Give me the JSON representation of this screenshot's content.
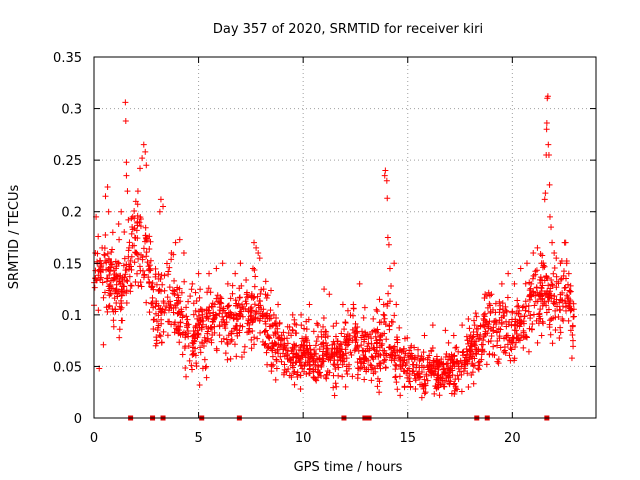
{
  "chart_data": {
    "type": "scatter",
    "title": "Day 357 of 2020, SRMTID for receiver kiri",
    "xlabel": "GPS time / hours",
    "ylabel": "SRMTID / TECUs",
    "xlim": [
      0,
      24
    ],
    "ylim": [
      0,
      0.35
    ],
    "xticks": [
      0,
      5,
      10,
      15,
      20
    ],
    "xtick_labels": [
      "0",
      "5",
      "10",
      "15",
      "20"
    ],
    "yticks": [
      0,
      0.05,
      0.1,
      0.15,
      0.2,
      0.25,
      0.3,
      0.35
    ],
    "ytick_labels": [
      "0",
      "0.05",
      "0.1",
      "0.15",
      "0.2",
      "0.25",
      "0.3",
      "0.35"
    ],
    "grid": true,
    "marker": "+",
    "color": "#ff0000",
    "baseline_markers_x": [
      1.75,
      2.8,
      3.3,
      5.15,
      6.95,
      11.95,
      12.95,
      13.15,
      18.3,
      18.8,
      21.65
    ],
    "trend": [
      [
        0.0,
        0.13,
        0.035
      ],
      [
        0.5,
        0.145,
        0.035
      ],
      [
        1.0,
        0.125,
        0.035
      ],
      [
        1.5,
        0.13,
        0.04
      ],
      [
        2.0,
        0.17,
        0.04
      ],
      [
        2.5,
        0.15,
        0.04
      ],
      [
        3.0,
        0.1,
        0.03
      ],
      [
        3.5,
        0.12,
        0.04
      ],
      [
        4.0,
        0.105,
        0.035
      ],
      [
        4.5,
        0.085,
        0.03
      ],
      [
        5.0,
        0.08,
        0.03
      ],
      [
        5.5,
        0.095,
        0.03
      ],
      [
        6.0,
        0.1,
        0.03
      ],
      [
        6.5,
        0.09,
        0.03
      ],
      [
        7.0,
        0.1,
        0.03
      ],
      [
        7.5,
        0.1,
        0.03
      ],
      [
        8.0,
        0.105,
        0.035
      ],
      [
        8.5,
        0.08,
        0.03
      ],
      [
        9.0,
        0.065,
        0.025
      ],
      [
        9.5,
        0.06,
        0.025
      ],
      [
        10.0,
        0.065,
        0.025
      ],
      [
        10.5,
        0.06,
        0.025
      ],
      [
        11.0,
        0.065,
        0.025
      ],
      [
        11.5,
        0.06,
        0.025
      ],
      [
        12.0,
        0.07,
        0.025
      ],
      [
        12.5,
        0.075,
        0.03
      ],
      [
        13.0,
        0.065,
        0.025
      ],
      [
        13.5,
        0.07,
        0.03
      ],
      [
        14.0,
        0.08,
        0.035
      ],
      [
        14.5,
        0.065,
        0.03
      ],
      [
        15.0,
        0.05,
        0.02
      ],
      [
        15.5,
        0.045,
        0.02
      ],
      [
        16.0,
        0.045,
        0.02
      ],
      [
        16.5,
        0.045,
        0.02
      ],
      [
        17.0,
        0.05,
        0.02
      ],
      [
        17.5,
        0.05,
        0.02
      ],
      [
        18.0,
        0.065,
        0.025
      ],
      [
        18.5,
        0.08,
        0.03
      ],
      [
        19.0,
        0.085,
        0.03
      ],
      [
        19.5,
        0.09,
        0.03
      ],
      [
        20.0,
        0.08,
        0.03
      ],
      [
        20.5,
        0.095,
        0.03
      ],
      [
        21.0,
        0.11,
        0.035
      ],
      [
        21.5,
        0.13,
        0.035
      ],
      [
        22.0,
        0.11,
        0.03
      ],
      [
        22.5,
        0.125,
        0.03
      ],
      [
        22.9,
        0.1,
        0.03
      ]
    ],
    "spikes": [
      [
        0.1,
        0.195
      ],
      [
        0.2,
        0.176
      ],
      [
        0.3,
        0.142
      ],
      [
        0.25,
        0.048
      ],
      [
        0.45,
        0.071
      ],
      [
        0.55,
        0.215
      ],
      [
        0.65,
        0.224
      ],
      [
        0.7,
        0.2
      ],
      [
        0.9,
        0.18
      ],
      [
        1.2,
        0.173
      ],
      [
        1.3,
        0.2
      ],
      [
        1.5,
        0.306
      ],
      [
        1.52,
        0.288
      ],
      [
        1.55,
        0.248
      ],
      [
        1.55,
        0.235
      ],
      [
        1.6,
        0.22
      ],
      [
        1.85,
        0.195
      ],
      [
        2.0,
        0.21
      ],
      [
        2.1,
        0.22
      ],
      [
        2.2,
        0.242
      ],
      [
        2.3,
        0.252
      ],
      [
        2.38,
        0.265
      ],
      [
        2.45,
        0.258
      ],
      [
        2.5,
        0.245
      ],
      [
        2.95,
        0.07
      ],
      [
        3.15,
        0.2
      ],
      [
        3.2,
        0.212
      ],
      [
        3.3,
        0.205
      ],
      [
        3.7,
        0.16
      ],
      [
        3.9,
        0.17
      ],
      [
        4.1,
        0.173
      ],
      [
        4.3,
        0.16
      ],
      [
        4.4,
        0.04
      ],
      [
        4.7,
        0.13
      ],
      [
        5.0,
        0.14
      ],
      [
        5.05,
        0.032
      ],
      [
        5.5,
        0.14
      ],
      [
        5.85,
        0.145
      ],
      [
        6.15,
        0.15
      ],
      [
        6.4,
        0.13
      ],
      [
        6.75,
        0.14
      ],
      [
        7.0,
        0.15
      ],
      [
        7.3,
        0.12
      ],
      [
        7.6,
        0.145
      ],
      [
        7.65,
        0.17
      ],
      [
        7.75,
        0.165
      ],
      [
        7.85,
        0.16
      ],
      [
        8.2,
        0.12
      ],
      [
        8.6,
        0.1
      ],
      [
        8.8,
        0.11
      ],
      [
        9.5,
        0.1
      ],
      [
        9.9,
        0.1
      ],
      [
        10.3,
        0.11
      ],
      [
        10.7,
        0.09
      ],
      [
        11.0,
        0.125
      ],
      [
        11.25,
        0.12
      ],
      [
        11.9,
        0.11
      ],
      [
        12.4,
        0.11
      ],
      [
        12.7,
        0.13
      ],
      [
        12.85,
        0.08
      ],
      [
        12.95,
        0.107
      ],
      [
        13.5,
        0.105
      ],
      [
        13.65,
        0.115
      ],
      [
        13.85,
        0.11
      ],
      [
        13.9,
        0.235
      ],
      [
        13.93,
        0.24
      ],
      [
        14.0,
        0.23
      ],
      [
        14.02,
        0.213
      ],
      [
        14.05,
        0.175
      ],
      [
        14.1,
        0.168
      ],
      [
        14.15,
        0.145
      ],
      [
        14.2,
        0.128
      ],
      [
        14.35,
        0.15
      ],
      [
        14.45,
        0.11
      ],
      [
        15.8,
        0.08
      ],
      [
        16.2,
        0.09
      ],
      [
        16.8,
        0.085
      ],
      [
        17.2,
        0.08
      ],
      [
        17.6,
        0.09
      ],
      [
        17.9,
        0.03
      ],
      [
        18.2,
        0.09
      ],
      [
        18.7,
        0.12
      ],
      [
        19.0,
        0.12
      ],
      [
        19.5,
        0.13
      ],
      [
        19.8,
        0.14
      ],
      [
        20.1,
        0.13
      ],
      [
        20.4,
        0.145
      ],
      [
        20.7,
        0.15
      ],
      [
        20.9,
        0.13
      ],
      [
        21.0,
        0.16
      ],
      [
        21.2,
        0.165
      ],
      [
        21.4,
        0.15
      ],
      [
        21.55,
        0.212
      ],
      [
        21.58,
        0.218
      ],
      [
        21.62,
        0.255
      ],
      [
        21.64,
        0.28
      ],
      [
        21.65,
        0.286
      ],
      [
        21.67,
        0.31
      ],
      [
        21.7,
        0.312
      ],
      [
        21.72,
        0.265
      ],
      [
        21.75,
        0.255
      ],
      [
        21.78,
        0.226
      ],
      [
        21.8,
        0.195
      ],
      [
        21.85,
        0.185
      ],
      [
        21.9,
        0.17
      ],
      [
        22.0,
        0.16
      ],
      [
        22.1,
        0.155
      ],
      [
        22.3,
        0.15
      ],
      [
        22.5,
        0.17
      ],
      [
        22.55,
        0.17
      ],
      [
        22.6,
        0.15
      ],
      [
        22.7,
        0.14
      ],
      [
        22.8,
        0.085
      ],
      [
        22.85,
        0.058
      ],
      [
        22.9,
        0.075
      ]
    ],
    "seed": 357
  }
}
